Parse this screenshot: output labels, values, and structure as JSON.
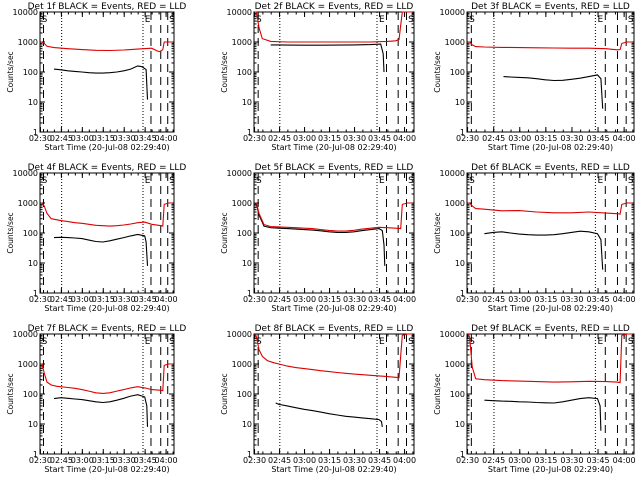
{
  "figure": {
    "shared": {
      "xlabel": "Start Time (20-Jul-08 02:29:40)",
      "ylabel": "Counts/sec",
      "x_tick_labels": [
        "02:30",
        "02:45",
        "03:00",
        "03:15",
        "03:30",
        "03:45",
        "04:00"
      ],
      "x_ticks_minutes": [
        0.33,
        15.33,
        30.33,
        45.33,
        60.33,
        75.33,
        90.33
      ],
      "y_tick_labels": [
        "1",
        "10",
        "100",
        "1000",
        "10000"
      ],
      "y_ticks": [
        1,
        10,
        100,
        1000,
        10000
      ],
      "ylim": [
        1,
        10000
      ],
      "xlim_minutes": [
        0,
        96
      ],
      "yscale": "log",
      "markers": {
        "S": "S",
        "E": "E"
      },
      "colors": {
        "events": "#000000",
        "lld": "#dd0000"
      }
    }
  },
  "chart_data": [
    {
      "type": "line",
      "title": "Det 1f BLACK = Events, RED = LLD",
      "vlines_dashed": [
        2.5,
        79.5,
        86.5,
        91.5
      ],
      "vlines_dotted": [
        15.5,
        73.8
      ],
      "s_marker_x": [
        1.2,
        92.5
      ],
      "e_marker_x": [
        75.0
      ],
      "series": [
        {
          "name": "Events",
          "x": [
            10,
            15,
            20,
            25,
            30,
            35,
            40,
            45,
            50,
            55,
            60,
            65,
            70,
            73,
            76,
            77
          ],
          "y": [
            125,
            118,
            110,
            105,
            100,
            95,
            92,
            92,
            95,
            100,
            110,
            125,
            160,
            150,
            120,
            12
          ]
        },
        {
          "name": "LLD",
          "x": [
            0.5,
            1.5,
            3,
            5,
            10,
            20,
            30,
            40,
            50,
            60,
            70,
            80,
            84,
            86,
            88,
            89,
            92,
            95
          ],
          "y": [
            1000,
            1000,
            900,
            720,
            650,
            600,
            560,
            530,
            520,
            540,
            580,
            620,
            500,
            480,
            560,
            1000,
            1000,
            1000
          ]
        }
      ]
    },
    {
      "type": "line",
      "title": "Det 2f BLACK = Events, RED = LLD",
      "vlines_dashed": [
        2.5,
        79.5,
        86.5,
        91.5
      ],
      "vlines_dotted": [
        15.5,
        73.8
      ],
      "s_marker_x": [
        1.2,
        92.5
      ],
      "e_marker_x": [
        75.0
      ],
      "series": [
        {
          "name": "Events",
          "x": [
            10,
            15,
            20,
            30,
            40,
            50,
            60,
            70,
            76,
            77.5,
            78
          ],
          "y": [
            800,
            800,
            790,
            780,
            780,
            790,
            800,
            820,
            850,
            400,
            100
          ]
        },
        {
          "name": "LLD",
          "x": [
            0.5,
            1.5,
            3,
            5,
            10,
            20,
            30,
            40,
            50,
            60,
            70,
            80,
            85,
            87,
            89,
            92,
            95
          ],
          "y": [
            10000,
            10000,
            3000,
            1300,
            1050,
            1000,
            1000,
            1000,
            1000,
            1000,
            1000,
            1050,
            1100,
            1200,
            10000,
            10000,
            10000
          ]
        }
      ]
    },
    {
      "type": "line",
      "title": "Det 3f BLACK = Events, RED = LLD",
      "vlines_dashed": [
        2.5,
        79.5,
        86.5,
        91.5
      ],
      "vlines_dotted": [
        15.5,
        73.8
      ],
      "s_marker_x": [
        1.2,
        92.5
      ],
      "e_marker_x": [
        75.0
      ],
      "series": [
        {
          "name": "Events",
          "x": [
            21,
            25,
            30,
            35,
            40,
            45,
            50,
            55,
            60,
            65,
            70,
            75,
            77,
            78
          ],
          "y": [
            70,
            68,
            66,
            64,
            60,
            55,
            52,
            53,
            57,
            62,
            70,
            80,
            60,
            6
          ]
        },
        {
          "name": "LLD",
          "x": [
            0.5,
            1.5,
            3,
            5,
            10,
            20,
            30,
            40,
            50,
            60,
            70,
            80,
            86,
            88,
            89,
            92,
            95
          ],
          "y": [
            1000,
            1000,
            800,
            700,
            680,
            660,
            650,
            640,
            630,
            620,
            620,
            600,
            550,
            560,
            900,
            1000,
            1000
          ]
        }
      ]
    },
    {
      "type": "line",
      "title": "Det 4f BLACK = Events, RED = LLD",
      "vlines_dashed": [
        2.5,
        79.5,
        86.5,
        91.5
      ],
      "vlines_dotted": [
        15.5,
        73.8
      ],
      "s_marker_x": [
        1.2,
        92.5
      ],
      "e_marker_x": [
        75.0
      ],
      "series": [
        {
          "name": "Events",
          "x": [
            10,
            15,
            20,
            25,
            30,
            35,
            40,
            45,
            50,
            55,
            60,
            65,
            70,
            75,
            76,
            77
          ],
          "y": [
            70,
            72,
            70,
            68,
            65,
            58,
            52,
            50,
            55,
            62,
            70,
            80,
            90,
            80,
            50,
            8
          ]
        },
        {
          "name": "LLD",
          "x": [
            0.5,
            1.5,
            3,
            5,
            8,
            15,
            20,
            25,
            30,
            35,
            40,
            45,
            50,
            55,
            60,
            65,
            70,
            75,
            80,
            85,
            88,
            89,
            92,
            95
          ],
          "y": [
            1000,
            1000,
            800,
            450,
            300,
            260,
            240,
            220,
            210,
            195,
            180,
            175,
            170,
            175,
            185,
            200,
            220,
            230,
            195,
            180,
            170,
            900,
            1000,
            1000
          ]
        }
      ]
    },
    {
      "type": "line",
      "title": "Det 5f BLACK = Events, RED = LLD",
      "vlines_dashed": [
        2.5,
        79.5,
        86.5,
        91.5
      ],
      "vlines_dotted": [
        15.5,
        73.8
      ],
      "s_marker_x": [
        1.2,
        92.5
      ],
      "e_marker_x": [
        75.0
      ],
      "series": [
        {
          "name": "Events",
          "x": [
            0.5,
            1.5,
            3,
            6,
            10,
            15,
            20,
            25,
            30,
            35,
            40,
            45,
            50,
            55,
            60,
            65,
            70,
            75,
            77,
            78,
            78.5
          ],
          "y": [
            1000,
            900,
            400,
            170,
            150,
            145,
            140,
            135,
            130,
            125,
            118,
            110,
            105,
            105,
            110,
            120,
            130,
            140,
            120,
            40,
            8
          ]
        },
        {
          "name": "LLD",
          "x": [
            0.5,
            1.5,
            3,
            6,
            10,
            15,
            20,
            25,
            30,
            35,
            40,
            45,
            50,
            55,
            60,
            65,
            70,
            75,
            80,
            85,
            88,
            89,
            92,
            95
          ],
          "y": [
            1000,
            1000,
            450,
            190,
            165,
            160,
            155,
            150,
            145,
            140,
            130,
            122,
            117,
            117,
            123,
            135,
            145,
            155,
            150,
            145,
            140,
            900,
            1000,
            1000
          ]
        }
      ]
    },
    {
      "type": "line",
      "title": "Det 6f BLACK = Events, RED = LLD",
      "vlines_dashed": [
        2.5,
        79.5,
        86.5,
        91.5
      ],
      "vlines_dotted": [
        15.5,
        73.8
      ],
      "s_marker_x": [
        1.2,
        92.5
      ],
      "e_marker_x": [
        75.0
      ],
      "series": [
        {
          "name": "Events",
          "x": [
            10,
            15,
            20,
            25,
            30,
            35,
            40,
            45,
            50,
            55,
            60,
            65,
            70,
            75,
            77,
            78
          ],
          "y": [
            95,
            105,
            110,
            100,
            92,
            88,
            85,
            85,
            88,
            95,
            105,
            115,
            110,
            95,
            60,
            6
          ]
        },
        {
          "name": "LLD",
          "x": [
            0.5,
            1.5,
            3,
            5,
            10,
            20,
            30,
            40,
            50,
            60,
            70,
            80,
            86,
            88,
            89,
            92,
            95
          ],
          "y": [
            1000,
            1000,
            800,
            650,
            620,
            550,
            560,
            500,
            470,
            470,
            500,
            460,
            440,
            430,
            900,
            1000,
            1000
          ]
        }
      ]
    },
    {
      "type": "line",
      "title": "Det 7f BLACK = Events, RED = LLD",
      "vlines_dashed": [
        2.5,
        79.5,
        86.5,
        91.5
      ],
      "vlines_dotted": [
        15.5,
        73.8
      ],
      "s_marker_x": [
        1.2,
        92.5
      ],
      "e_marker_x": [
        75.0
      ],
      "series": [
        {
          "name": "Events",
          "x": [
            10,
            15,
            20,
            25,
            30,
            35,
            40,
            45,
            50,
            55,
            60,
            65,
            70,
            75,
            76.5,
            77
          ],
          "y": [
            70,
            75,
            72,
            68,
            65,
            60,
            55,
            52,
            55,
            62,
            72,
            85,
            95,
            80,
            40,
            8
          ]
        },
        {
          "name": "LLD",
          "x": [
            0.5,
            1.5,
            3,
            5,
            8,
            12,
            20,
            25,
            30,
            35,
            40,
            45,
            50,
            55,
            60,
            65,
            70,
            75,
            80,
            85,
            88,
            89,
            92,
            95
          ],
          "y": [
            1000,
            1000,
            500,
            250,
            200,
            180,
            165,
            155,
            140,
            125,
            110,
            105,
            110,
            125,
            140,
            160,
            175,
            160,
            140,
            135,
            130,
            900,
            1000,
            1000
          ]
        }
      ]
    },
    {
      "type": "line",
      "title": "Det 8f BLACK = Events, RED = LLD",
      "vlines_dashed": [
        2.5,
        79.5,
        86.5,
        91.5
      ],
      "vlines_dotted": [
        15.5,
        73.8
      ],
      "s_marker_x": [
        1.2,
        92.5
      ],
      "e_marker_x": [
        75.0
      ],
      "series": [
        {
          "name": "Events",
          "x": [
            13,
            15,
            20,
            25,
            30,
            35,
            40,
            45,
            50,
            55,
            60,
            65,
            70,
            75,
            76.5,
            77
          ],
          "y": [
            50,
            45,
            40,
            35,
            31,
            28,
            25,
            22,
            20,
            18,
            17,
            16,
            15,
            14,
            12,
            8
          ]
        },
        {
          "name": "LLD",
          "x": [
            0.5,
            1.5,
            3,
            5,
            8,
            12,
            15,
            20,
            25,
            30,
            35,
            40,
            45,
            50,
            55,
            60,
            65,
            70,
            75,
            80,
            85,
            87,
            89,
            92,
            95
          ],
          "y": [
            10000,
            8000,
            3000,
            1800,
            1300,
            1100,
            1000,
            850,
            760,
            700,
            650,
            600,
            560,
            520,
            490,
            460,
            440,
            420,
            400,
            380,
            360,
            350,
            9000,
            10000,
            10000
          ]
        }
      ]
    },
    {
      "type": "line",
      "title": "Det 9f BLACK = Events, RED = LLD",
      "vlines_dashed": [
        2.5,
        79.5,
        86.5,
        91.5
      ],
      "vlines_dotted": [
        15.5,
        73.8
      ],
      "s_marker_x": [
        1.2,
        92.5
      ],
      "e_marker_x": [
        75.0
      ],
      "series": [
        {
          "name": "Events",
          "x": [
            10,
            15,
            20,
            25,
            30,
            35,
            40,
            45,
            50,
            55,
            60,
            65,
            70,
            75,
            76.5,
            77
          ],
          "y": [
            62,
            60,
            58,
            57,
            55,
            54,
            52,
            51,
            50,
            55,
            62,
            70,
            75,
            70,
            40,
            6
          ]
        },
        {
          "name": "LLD",
          "x": [
            0.5,
            1.5,
            3,
            5,
            10,
            20,
            30,
            40,
            50,
            60,
            70,
            80,
            86,
            88,
            89,
            92,
            95
          ],
          "y": [
            10000,
            8000,
            800,
            320,
            300,
            280,
            270,
            260,
            250,
            255,
            265,
            260,
            250,
            240,
            9000,
            10000,
            10000
          ]
        }
      ]
    }
  ]
}
